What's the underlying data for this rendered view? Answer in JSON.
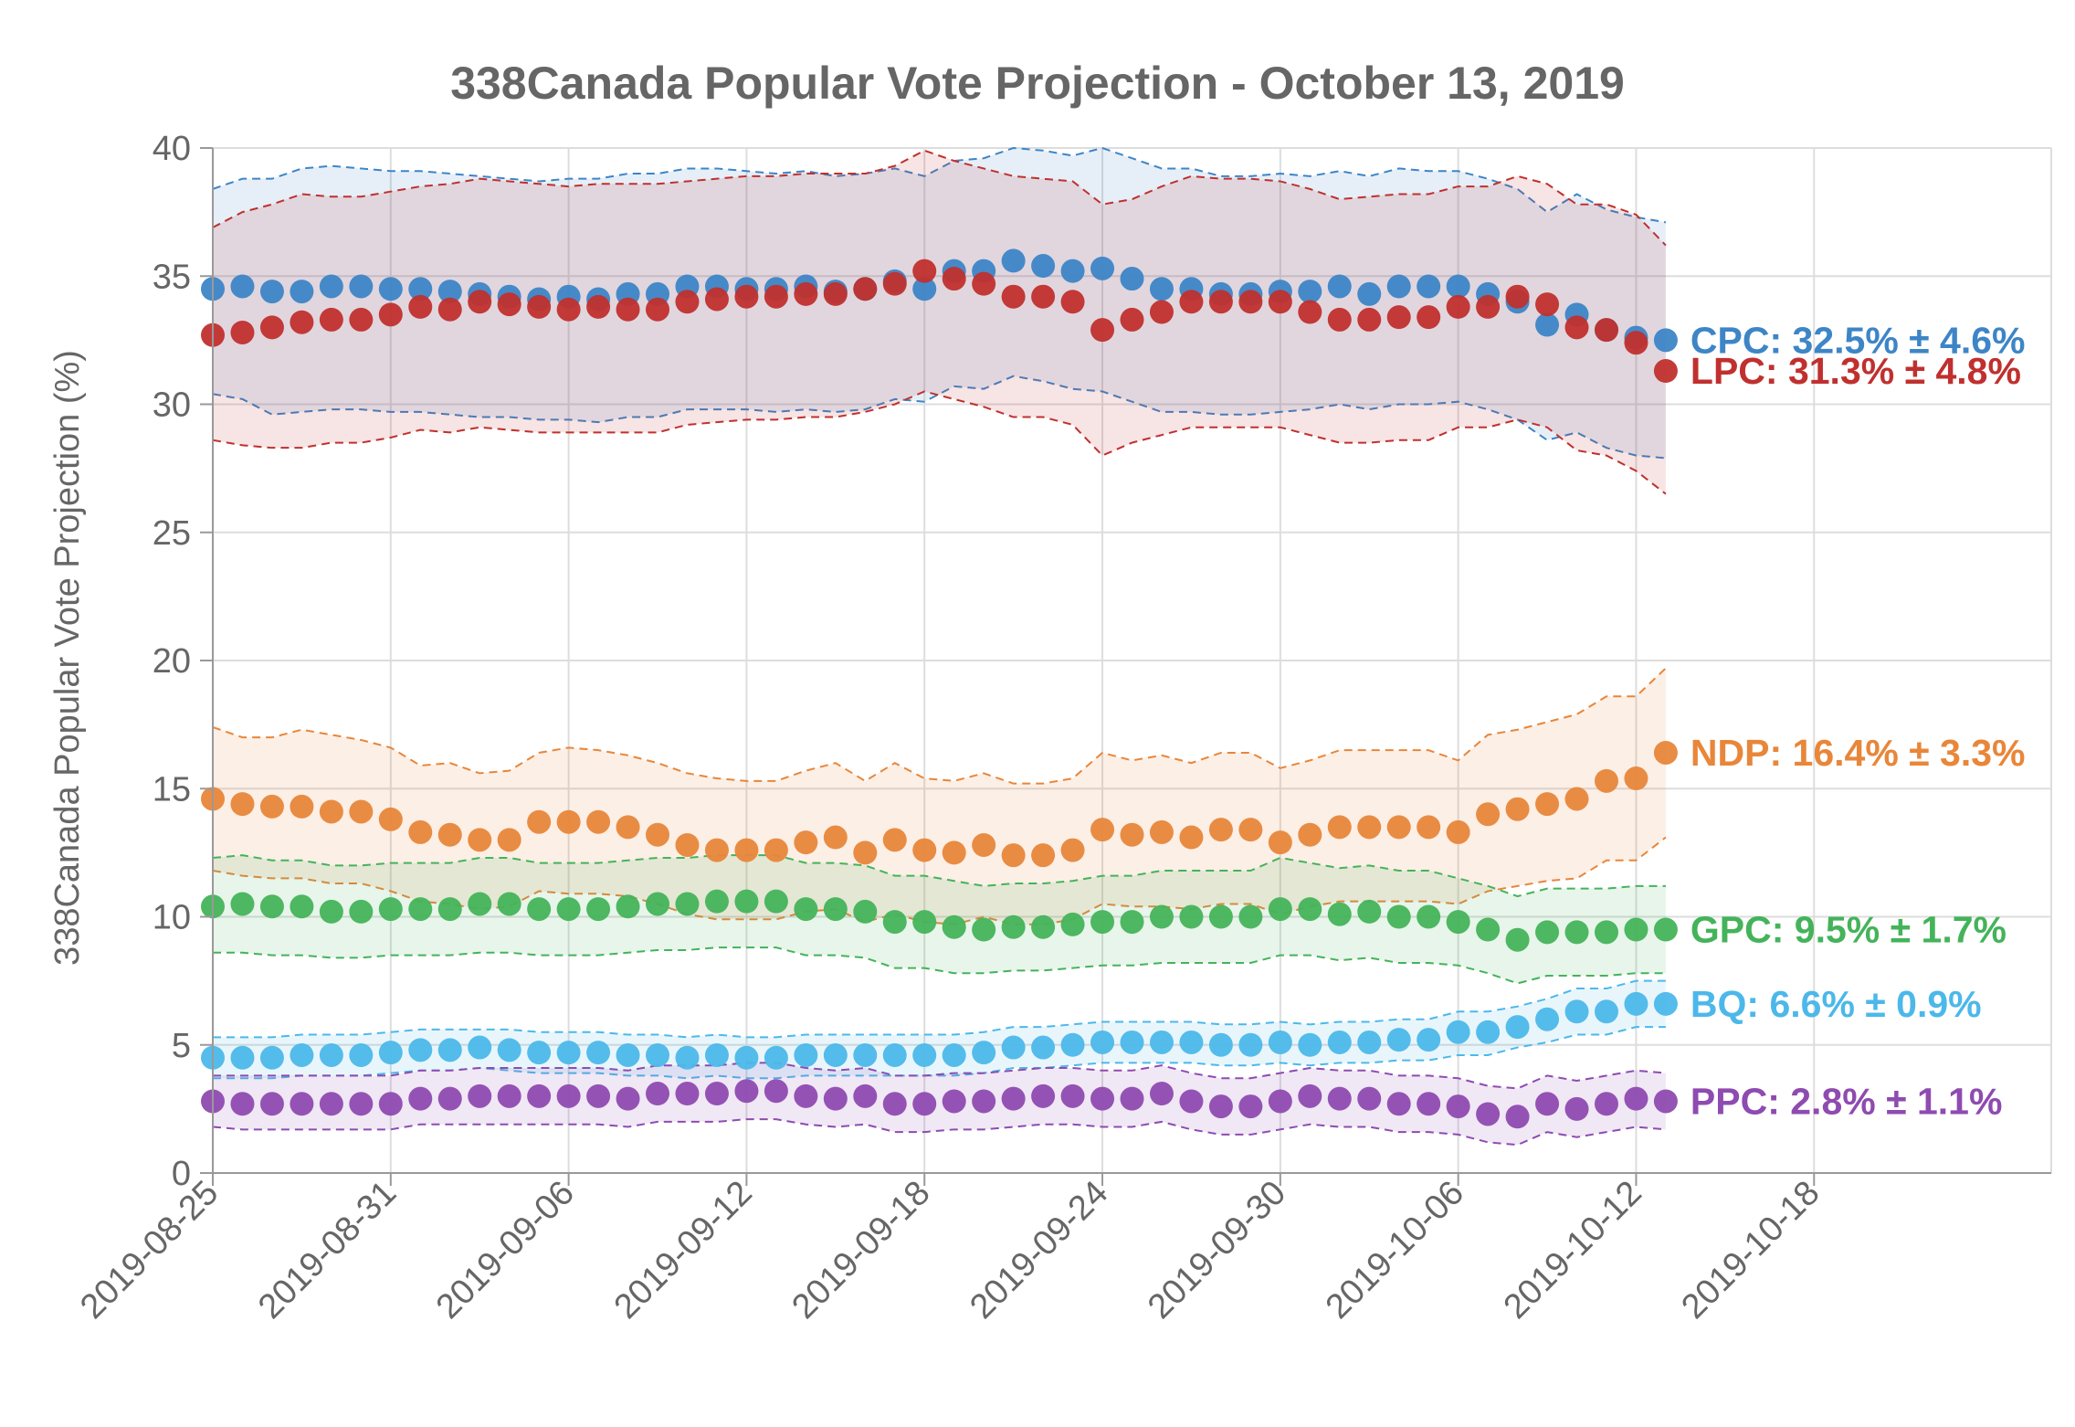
{
  "chart_data": {
    "type": "scatter",
    "title": "338Canada Popular Vote Projection - October 13, 2019",
    "xlabel": "",
    "ylabel": "338Canada Popular Vote Projection (%)",
    "ylim": [
      0,
      40
    ],
    "yticks": [
      "0",
      "5",
      "10",
      "15",
      "20",
      "25",
      "30",
      "35",
      "40"
    ],
    "xlim": [
      "2019-08-25",
      "2019-10-26"
    ],
    "xticks": [
      "2019-08-25",
      "2019-08-31",
      "2019-09-06",
      "2019-09-12",
      "2019-09-18",
      "2019-09-24",
      "2019-09-30",
      "2019-10-06",
      "2019-10-12",
      "2019-10-18"
    ],
    "grid": true,
    "legend": "end-of-series labels (right)",
    "x": [
      "2019-08-25",
      "2019-08-26",
      "2019-08-27",
      "2019-08-28",
      "2019-08-29",
      "2019-08-30",
      "2019-08-31",
      "2019-09-01",
      "2019-09-02",
      "2019-09-03",
      "2019-09-04",
      "2019-09-05",
      "2019-09-06",
      "2019-09-07",
      "2019-09-08",
      "2019-09-09",
      "2019-09-10",
      "2019-09-11",
      "2019-09-12",
      "2019-09-13",
      "2019-09-14",
      "2019-09-15",
      "2019-09-16",
      "2019-09-17",
      "2019-09-18",
      "2019-09-19",
      "2019-09-20",
      "2019-09-21",
      "2019-09-22",
      "2019-09-23",
      "2019-09-24",
      "2019-09-25",
      "2019-09-26",
      "2019-09-27",
      "2019-09-28",
      "2019-09-29",
      "2019-09-30",
      "2019-10-01",
      "2019-10-02",
      "2019-10-03",
      "2019-10-04",
      "2019-10-05",
      "2019-10-06",
      "2019-10-07",
      "2019-10-08",
      "2019-10-09",
      "2019-10-10",
      "2019-10-11",
      "2019-10-12",
      "2019-10-13"
    ],
    "series": [
      {
        "name": "CPC",
        "end_label": "CPC: 32.5% ± 4.6%",
        "color": "#3d85c6",
        "values": [
          34.5,
          34.6,
          34.4,
          34.4,
          34.6,
          34.6,
          34.5,
          34.5,
          34.4,
          34.3,
          34.2,
          34.1,
          34.2,
          34.1,
          34.3,
          34.3,
          34.6,
          34.6,
          34.5,
          34.5,
          34.6,
          34.4,
          34.5,
          34.8,
          34.5,
          35.2,
          35.2,
          35.6,
          35.4,
          35.2,
          35.3,
          34.9,
          34.5,
          34.5,
          34.3,
          34.3,
          34.4,
          34.4,
          34.6,
          34.3,
          34.6,
          34.6,
          34.6,
          34.3,
          34.0,
          33.1,
          33.5,
          32.9,
          32.6,
          32.5
        ],
        "upper": [
          38.4,
          38.8,
          38.8,
          39.2,
          39.3,
          39.2,
          39.1,
          39.1,
          39.0,
          38.9,
          38.8,
          38.7,
          38.8,
          38.8,
          39.0,
          39.0,
          39.2,
          39.2,
          39.1,
          39.0,
          39.1,
          38.9,
          39.0,
          39.2,
          38.9,
          39.5,
          39.6,
          40.0,
          39.9,
          39.7,
          40.0,
          39.6,
          39.2,
          39.2,
          38.9,
          38.9,
          39.0,
          38.9,
          39.1,
          38.9,
          39.2,
          39.1,
          39.1,
          38.8,
          38.4,
          37.5,
          38.2,
          37.6,
          37.3,
          37.1
        ],
        "lower": [
          30.4,
          30.2,
          29.6,
          29.7,
          29.8,
          29.8,
          29.7,
          29.7,
          29.6,
          29.5,
          29.5,
          29.4,
          29.4,
          29.3,
          29.5,
          29.5,
          29.8,
          29.8,
          29.8,
          29.7,
          29.8,
          29.7,
          29.8,
          30.2,
          30.1,
          30.7,
          30.6,
          31.1,
          30.9,
          30.6,
          30.5,
          30.1,
          29.7,
          29.7,
          29.6,
          29.6,
          29.7,
          29.8,
          30.0,
          29.8,
          30.0,
          30.0,
          30.1,
          29.8,
          29.4,
          28.6,
          28.9,
          28.3,
          28.0,
          27.9
        ]
      },
      {
        "name": "LPC",
        "end_label": "LPC: 31.3% ± 4.8%",
        "color": "#c0302e",
        "values": [
          32.7,
          32.8,
          33.0,
          33.2,
          33.3,
          33.3,
          33.5,
          33.8,
          33.7,
          34.0,
          33.9,
          33.8,
          33.7,
          33.8,
          33.7,
          33.7,
          34.0,
          34.1,
          34.2,
          34.2,
          34.3,
          34.3,
          34.5,
          34.7,
          35.2,
          34.9,
          34.7,
          34.2,
          34.2,
          34.0,
          32.9,
          33.3,
          33.6,
          34.0,
          34.0,
          34.0,
          34.0,
          33.6,
          33.3,
          33.3,
          33.4,
          33.4,
          33.8,
          33.8,
          34.2,
          33.9,
          33.0,
          32.9,
          32.4,
          31.3
        ],
        "upper": [
          36.9,
          37.5,
          37.8,
          38.2,
          38.1,
          38.1,
          38.3,
          38.5,
          38.6,
          38.8,
          38.7,
          38.6,
          38.5,
          38.6,
          38.6,
          38.6,
          38.7,
          38.8,
          38.9,
          38.9,
          39.0,
          39.0,
          39.0,
          39.3,
          39.9,
          39.5,
          39.2,
          38.9,
          38.8,
          38.7,
          37.8,
          38.0,
          38.5,
          38.9,
          38.8,
          38.8,
          38.7,
          38.4,
          38.0,
          38.1,
          38.2,
          38.2,
          38.5,
          38.5,
          38.9,
          38.6,
          37.8,
          37.8,
          37.4,
          36.2
        ],
        "lower": [
          28.6,
          28.4,
          28.3,
          28.3,
          28.5,
          28.5,
          28.7,
          29.0,
          28.9,
          29.1,
          29.0,
          28.9,
          28.9,
          28.9,
          28.9,
          28.9,
          29.2,
          29.3,
          29.4,
          29.4,
          29.5,
          29.5,
          29.7,
          30.0,
          30.5,
          30.2,
          29.9,
          29.5,
          29.5,
          29.2,
          28.0,
          28.5,
          28.8,
          29.1,
          29.1,
          29.1,
          29.1,
          28.8,
          28.5,
          28.5,
          28.6,
          28.6,
          29.1,
          29.1,
          29.4,
          29.1,
          28.2,
          28.0,
          27.4,
          26.5
        ]
      },
      {
        "name": "NDP",
        "end_label": "NDP: 16.4% ± 3.3%",
        "color": "#e8863a",
        "values": [
          14.6,
          14.4,
          14.3,
          14.3,
          14.1,
          14.1,
          13.8,
          13.3,
          13.2,
          13.0,
          13.0,
          13.7,
          13.7,
          13.7,
          13.5,
          13.2,
          12.8,
          12.6,
          12.6,
          12.6,
          12.9,
          13.1,
          12.5,
          13.0,
          12.6,
          12.5,
          12.8,
          12.4,
          12.4,
          12.6,
          13.4,
          13.2,
          13.3,
          13.1,
          13.4,
          13.4,
          12.9,
          13.2,
          13.5,
          13.5,
          13.5,
          13.5,
          13.3,
          14.0,
          14.2,
          14.4,
          14.6,
          15.3,
          15.4,
          16.4
        ],
        "upper": [
          17.4,
          17.0,
          17.0,
          17.3,
          17.1,
          16.9,
          16.6,
          15.9,
          16.0,
          15.6,
          15.7,
          16.4,
          16.6,
          16.5,
          16.3,
          16.0,
          15.6,
          15.4,
          15.3,
          15.3,
          15.7,
          16.0,
          15.3,
          16.0,
          15.4,
          15.3,
          15.6,
          15.2,
          15.2,
          15.4,
          16.4,
          16.1,
          16.3,
          16.0,
          16.4,
          16.4,
          15.8,
          16.1,
          16.5,
          16.5,
          16.5,
          16.5,
          16.1,
          17.1,
          17.3,
          17.6,
          17.9,
          18.6,
          18.6,
          19.7
        ],
        "lower": [
          11.8,
          11.6,
          11.5,
          11.5,
          11.3,
          11.3,
          11.0,
          10.6,
          10.5,
          10.3,
          10.4,
          11.0,
          10.9,
          10.9,
          10.8,
          10.5,
          10.1,
          9.9,
          9.9,
          9.9,
          10.2,
          10.3,
          9.8,
          10.1,
          9.8,
          9.7,
          10.0,
          9.7,
          9.7,
          9.9,
          10.5,
          10.4,
          10.4,
          10.3,
          10.5,
          10.5,
          10.1,
          10.4,
          10.6,
          10.6,
          10.6,
          10.6,
          10.5,
          11.0,
          11.2,
          11.4,
          11.5,
          12.2,
          12.2,
          13.1
        ]
      },
      {
        "name": "GPC",
        "end_label": "GPC: 9.5% ± 1.7%",
        "color": "#44b35a",
        "values": [
          10.4,
          10.5,
          10.4,
          10.4,
          10.2,
          10.2,
          10.3,
          10.3,
          10.3,
          10.5,
          10.5,
          10.3,
          10.3,
          10.3,
          10.4,
          10.5,
          10.5,
          10.6,
          10.6,
          10.6,
          10.3,
          10.3,
          10.2,
          9.8,
          9.8,
          9.6,
          9.5,
          9.6,
          9.6,
          9.7,
          9.8,
          9.8,
          10.0,
          10.0,
          10.0,
          10.0,
          10.3,
          10.3,
          10.1,
          10.2,
          10.0,
          10.0,
          9.8,
          9.5,
          9.1,
          9.4,
          9.4,
          9.4,
          9.5,
          9.5
        ],
        "upper": [
          12.3,
          12.4,
          12.2,
          12.2,
          12.0,
          12.0,
          12.1,
          12.1,
          12.1,
          12.3,
          12.3,
          12.1,
          12.1,
          12.1,
          12.2,
          12.3,
          12.3,
          12.4,
          12.4,
          12.4,
          12.1,
          12.1,
          12.0,
          11.6,
          11.6,
          11.4,
          11.2,
          11.3,
          11.3,
          11.4,
          11.6,
          11.6,
          11.8,
          11.8,
          11.8,
          11.8,
          12.3,
          12.1,
          11.9,
          12.0,
          11.8,
          11.8,
          11.5,
          11.2,
          10.8,
          11.1,
          11.1,
          11.1,
          11.2,
          11.2
        ],
        "lower": [
          8.6,
          8.6,
          8.5,
          8.5,
          8.4,
          8.4,
          8.5,
          8.5,
          8.5,
          8.6,
          8.6,
          8.5,
          8.5,
          8.5,
          8.6,
          8.7,
          8.7,
          8.8,
          8.8,
          8.8,
          8.5,
          8.5,
          8.4,
          8.0,
          8.0,
          7.8,
          7.8,
          7.9,
          7.9,
          8.0,
          8.1,
          8.1,
          8.2,
          8.2,
          8.2,
          8.2,
          8.5,
          8.5,
          8.3,
          8.4,
          8.2,
          8.2,
          8.1,
          7.8,
          7.4,
          7.7,
          7.7,
          7.7,
          7.8,
          7.8
        ]
      },
      {
        "name": "BQ",
        "end_label": "BQ: 6.6% ± 0.9%",
        "color": "#4cb8ea",
        "values": [
          4.5,
          4.5,
          4.5,
          4.6,
          4.6,
          4.6,
          4.7,
          4.8,
          4.8,
          4.9,
          4.8,
          4.7,
          4.7,
          4.7,
          4.6,
          4.6,
          4.5,
          4.6,
          4.5,
          4.5,
          4.6,
          4.6,
          4.6,
          4.6,
          4.6,
          4.6,
          4.7,
          4.9,
          4.9,
          5.0,
          5.1,
          5.1,
          5.1,
          5.1,
          5.0,
          5.0,
          5.1,
          5.0,
          5.1,
          5.1,
          5.2,
          5.2,
          5.5,
          5.5,
          5.7,
          6.0,
          6.3,
          6.3,
          6.6,
          6.6
        ],
        "upper": [
          5.3,
          5.3,
          5.3,
          5.4,
          5.4,
          5.4,
          5.5,
          5.6,
          5.6,
          5.6,
          5.6,
          5.5,
          5.5,
          5.5,
          5.4,
          5.4,
          5.3,
          5.4,
          5.3,
          5.3,
          5.4,
          5.4,
          5.4,
          5.4,
          5.4,
          5.4,
          5.5,
          5.7,
          5.7,
          5.8,
          5.9,
          5.9,
          5.9,
          5.9,
          5.8,
          5.8,
          5.9,
          5.8,
          5.9,
          5.9,
          6.0,
          6.0,
          6.3,
          6.3,
          6.5,
          6.8,
          7.2,
          7.2,
          7.5,
          7.5
        ],
        "lower": [
          3.7,
          3.7,
          3.7,
          3.8,
          3.8,
          3.8,
          3.9,
          4.0,
          4.0,
          4.1,
          4.0,
          3.9,
          3.9,
          3.9,
          3.8,
          3.8,
          3.7,
          3.8,
          3.7,
          3.7,
          3.8,
          3.8,
          3.8,
          3.8,
          3.8,
          3.8,
          3.9,
          4.1,
          4.1,
          4.2,
          4.3,
          4.3,
          4.3,
          4.3,
          4.2,
          4.2,
          4.3,
          4.2,
          4.3,
          4.3,
          4.4,
          4.4,
          4.6,
          4.6,
          4.9,
          5.1,
          5.4,
          5.4,
          5.7,
          5.7
        ]
      },
      {
        "name": "PPC",
        "end_label": "PPC: 2.8% ± 1.1%",
        "color": "#8e4bb0",
        "values": [
          2.8,
          2.7,
          2.7,
          2.7,
          2.7,
          2.7,
          2.7,
          2.9,
          2.9,
          3.0,
          3.0,
          3.0,
          3.0,
          3.0,
          2.9,
          3.1,
          3.1,
          3.1,
          3.2,
          3.2,
          3.0,
          2.9,
          3.0,
          2.7,
          2.7,
          2.8,
          2.8,
          2.9,
          3.0,
          3.0,
          2.9,
          2.9,
          3.1,
          2.8,
          2.6,
          2.6,
          2.8,
          3.0,
          2.9,
          2.9,
          2.7,
          2.7,
          2.6,
          2.3,
          2.2,
          2.7,
          2.5,
          2.7,
          2.9,
          2.8
        ],
        "upper": [
          3.8,
          3.8,
          3.8,
          3.8,
          3.8,
          3.8,
          3.8,
          4.0,
          4.0,
          4.1,
          4.1,
          4.1,
          4.1,
          4.1,
          4.0,
          4.2,
          4.2,
          4.2,
          4.3,
          4.3,
          4.1,
          4.0,
          4.1,
          3.8,
          3.8,
          3.9,
          3.9,
          4.0,
          4.1,
          4.1,
          4.0,
          4.0,
          4.2,
          3.9,
          3.7,
          3.7,
          3.9,
          4.1,
          4.0,
          4.0,
          3.8,
          3.8,
          3.7,
          3.4,
          3.3,
          3.8,
          3.6,
          3.8,
          4.0,
          3.9
        ],
        "lower": [
          1.8,
          1.7,
          1.7,
          1.7,
          1.7,
          1.7,
          1.7,
          1.9,
          1.9,
          1.9,
          1.9,
          1.9,
          1.9,
          1.9,
          1.8,
          2.0,
          2.0,
          2.0,
          2.1,
          2.1,
          1.9,
          1.8,
          1.9,
          1.6,
          1.6,
          1.7,
          1.7,
          1.8,
          1.9,
          1.9,
          1.8,
          1.8,
          2.0,
          1.7,
          1.5,
          1.5,
          1.7,
          1.9,
          1.8,
          1.8,
          1.6,
          1.6,
          1.5,
          1.2,
          1.1,
          1.6,
          1.4,
          1.6,
          1.8,
          1.7
        ]
      }
    ]
  }
}
